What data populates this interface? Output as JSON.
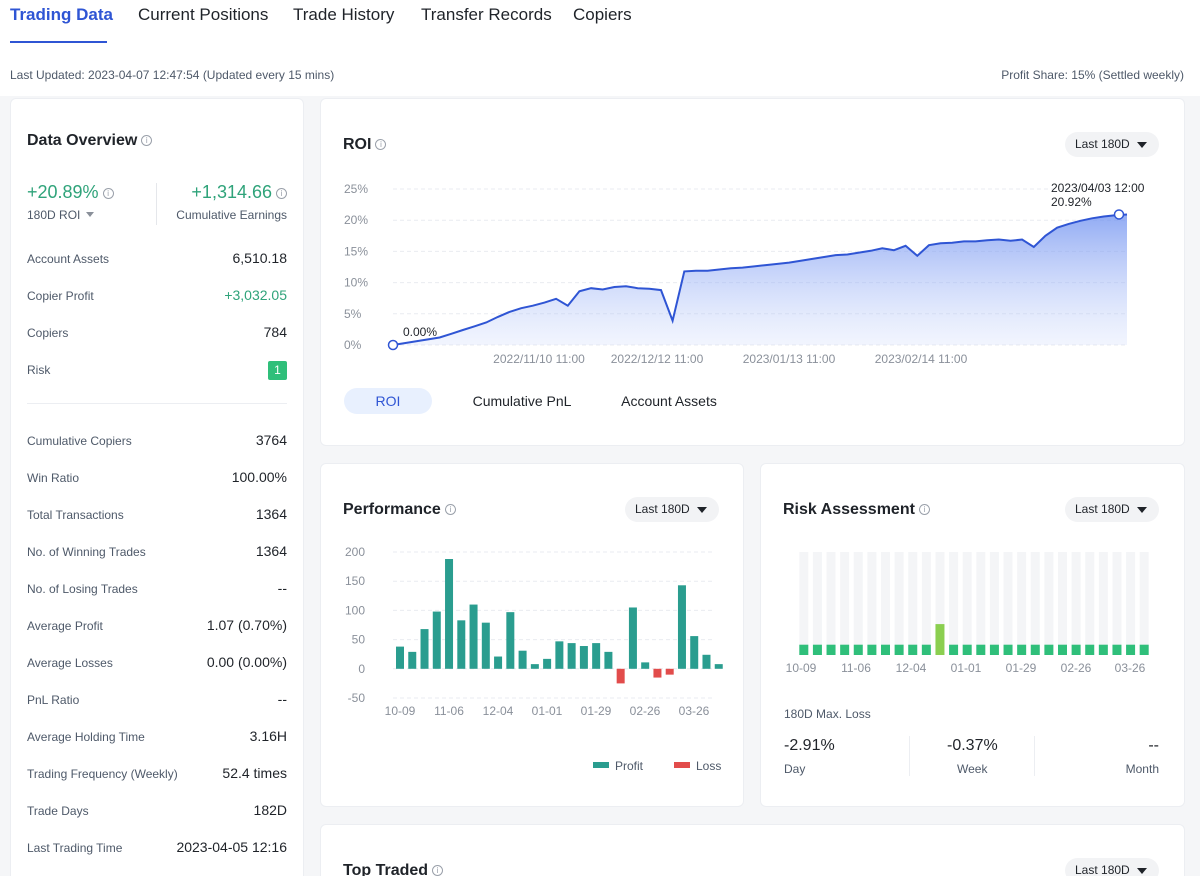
{
  "tabs": [
    {
      "label": "Trading Data",
      "active": true
    },
    {
      "label": "Current Positions",
      "active": false
    },
    {
      "label": "Trade History",
      "active": false
    },
    {
      "label": "Transfer Records",
      "active": false
    },
    {
      "label": "Copiers",
      "active": false
    }
  ],
  "meta": {
    "last_updated": "Last Updated: 2023-04-07 12:47:54 (Updated every 15 mins)",
    "profit_share": "Profit Share: 15% (Settled weekly)"
  },
  "overview": {
    "title": "Data Overview",
    "roi_value": "+20.89%",
    "roi_label": "180D ROI",
    "cumulative_value": "+1,314.66",
    "cumulative_label": "Cumulative Earnings",
    "stats_top": [
      {
        "label": "Account Assets",
        "value": "6,510.18"
      },
      {
        "label": "Copier Profit",
        "value": "+3,032.05"
      },
      {
        "label": "Copiers",
        "value": "784"
      },
      {
        "label": "Risk",
        "value": "1"
      }
    ],
    "stats": [
      {
        "label": "Cumulative Copiers",
        "value": "3764"
      },
      {
        "label": "Win Ratio",
        "value": "100.00%"
      },
      {
        "label": "Total Transactions",
        "value": "1364"
      },
      {
        "label": "No. of Winning Trades",
        "value": "1364"
      },
      {
        "label": "No. of Losing Trades",
        "value": "--"
      },
      {
        "label": "Average Profit",
        "value": "1.07 (0.70%)"
      },
      {
        "label": "Average Losses",
        "value": "0.00 (0.00%)"
      },
      {
        "label": "PnL Ratio",
        "value": "--"
      },
      {
        "label": "Average Holding Time",
        "value": "3.16H"
      },
      {
        "label": "Trading Frequency (Weekly)",
        "value": "52.4 times"
      },
      {
        "label": "Trade Days",
        "value": "182D"
      },
      {
        "label": "Last Trading Time",
        "value": "2023-04-05 12:16"
      }
    ]
  },
  "roi_section": {
    "title": "ROI",
    "range": "Last 180D",
    "tabs": [
      {
        "label": "ROI",
        "active": true
      },
      {
        "label": "Cumulative PnL",
        "active": false
      },
      {
        "label": "Account Assets",
        "active": false
      }
    ],
    "start_label": "0.00%",
    "end_date": "2023/04/03 12:00",
    "end_label": "20.92%"
  },
  "performance_section": {
    "title": "Performance",
    "range": "Last 180D",
    "legend_profit": "Profit",
    "legend_loss": "Loss"
  },
  "risk_section": {
    "title": "Risk Assessment",
    "range": "Last 180D",
    "max_loss_label": "180D Max. Loss",
    "items": [
      {
        "value": "-2.91%",
        "label": "Day"
      },
      {
        "value": "-0.37%",
        "label": "Week"
      },
      {
        "value": "--",
        "label": "Month"
      }
    ],
    "level_color": "#2fbf7a",
    "highlight_color": "#8bcf50"
  },
  "top_traded": {
    "title": "Top Traded",
    "range": "Last 180D"
  },
  "colors": {
    "accent": "#2f55d4",
    "profit": "#2a9d8f",
    "loss": "#e24c4b",
    "positive": "#2fa37a"
  },
  "chart_data": [
    {
      "type": "area",
      "title": "ROI",
      "x_tick_labels": [
        "2022/11/10 11:00",
        "2022/12/12 11:00",
        "2023/01/13 11:00",
        "2023/02/14 11:00"
      ],
      "y_tick_labels": [
        "0%",
        "5%",
        "10%",
        "15%",
        "20%",
        "25%"
      ],
      "ylim": [
        0,
        25
      ],
      "grid": true,
      "series": [
        {
          "values": [
            0,
            0.3,
            0.6,
            0.9,
            1.2,
            1.8,
            2.4,
            3.0,
            3.6,
            4.5,
            5.3,
            5.9,
            6.3,
            6.8,
            7.4,
            6.3,
            8.6,
            9.1,
            8.9,
            9.3,
            9.4,
            9.1,
            9.0,
            8.8,
            3.9,
            11.8,
            11.9,
            11.9,
            12.1,
            12.3,
            12.4,
            12.6,
            12.8,
            13.0,
            13.2,
            13.5,
            13.8,
            14.1,
            14.4,
            14.5,
            14.8,
            15.1,
            15.5,
            15.2,
            15.9,
            14.3,
            16.0,
            16.3,
            16.4,
            16.6,
            16.6,
            16.8,
            16.9,
            16.7,
            16.9,
            15.7,
            17.5,
            18.8,
            19.4,
            19.9,
            20.3,
            20.6,
            20.8,
            20.92
          ]
        }
      ]
    },
    {
      "type": "bar",
      "title": "Performance",
      "x_tick_labels": [
        "10-09",
        "11-06",
        "12-04",
        "01-01",
        "01-29",
        "02-26",
        "03-26"
      ],
      "y_tick_labels": [
        "200",
        "150",
        "100",
        "50",
        "0",
        "-50"
      ],
      "ylim": [
        -50,
        200
      ],
      "series": [
        {
          "name": "Profit",
          "values": [
            38,
            29,
            68,
            98,
            188,
            83,
            110,
            79,
            21,
            97,
            31,
            8,
            17,
            47,
            44,
            39,
            44,
            29,
            0,
            105,
            11,
            0,
            0,
            143,
            56,
            24,
            8
          ]
        },
        {
          "name": "Loss",
          "values": [
            0,
            0,
            0,
            0,
            0,
            0,
            0,
            0,
            0,
            0,
            0,
            0,
            0,
            0,
            0,
            0,
            0,
            0,
            -25,
            0,
            0,
            -15,
            -10,
            0,
            0,
            0,
            0
          ]
        }
      ]
    },
    {
      "type": "bar",
      "title": "Risk Assessment",
      "x_tick_labels": [
        "10-09",
        "11-06",
        "12-04",
        "01-01",
        "01-29",
        "02-26",
        "03-26"
      ],
      "levels": [
        1,
        1,
        1,
        1,
        1,
        1,
        1,
        1,
        1,
        1,
        3,
        1,
        1,
        1,
        1,
        1,
        1,
        1,
        1,
        1,
        1,
        1,
        1,
        1,
        1,
        1
      ],
      "max_level": 10
    }
  ]
}
